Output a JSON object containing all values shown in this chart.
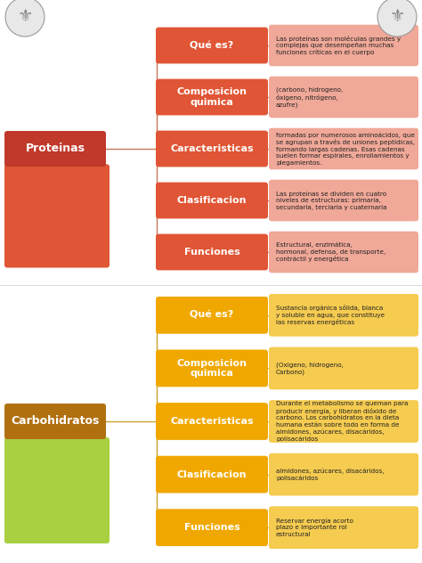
{
  "bg_color": "#ffffff",
  "section1": {
    "title": "Proteinas",
    "title_color": "#c0392b",
    "title_text_color": "#ffffff",
    "branch_color": "#c8785a",
    "box_color": "#e05535",
    "box_text_color": "#ffffff",
    "info_color": "#f0a898",
    "info_text_color": "#222222",
    "categories": [
      "Qué es?",
      "Composicion\nquimica",
      "Caracteristicas",
      "Clasificacion",
      "Funciones"
    ],
    "descriptions": [
      "Las proteínas son moléculas grandes y\ncomplejas que desempeñan muchas\nfunciones críticas en el cuerpo",
      "(carbono, hidrogeno,\nóxigeno, nitrógeno,\nazufre)",
      "formadas por numerosos aminoácidos, que\nse agrupan a través de uniones peptídicas,\nformando largas cadenas. Esas cadenas\nsuelen formar espirales, enrollamientos y\nplegamientos.",
      "Las proteínas se dividen en cuatro\nniveles de estructuras: primaria,\nsecundaria, terciaria y cuaternaria",
      "Estructural, enzimática,\nhormonal, defensa, de transporte,\ncontráctil y energética"
    ],
    "img_color_top": "#e05535",
    "img_color_bot": "#c05030"
  },
  "section2": {
    "title": "Carbohidratos",
    "title_color": "#b07010",
    "title_text_color": "#ffffff",
    "branch_color": "#c8a030",
    "box_color": "#f0a800",
    "box_text_color": "#ffffff",
    "info_color": "#f5cb50",
    "info_text_color": "#222222",
    "categories": [
      "Qué es?",
      "Composicion\nquimica",
      "Caracteristicas",
      "Clasificacion",
      "Funciones"
    ],
    "descriptions": [
      "Sustancia orgánica sólida, blanca\ny soluble en agua, que constituye\nlas reservas energéticas",
      "(Oxigeno, hidrogeno,\nCarbono)",
      "Durante el metabolismo se queman para\nproducir energía, y liberan dióxido de\ncarbono. Los carbohidratos en la dieta\nhumana están sobre todo en forma de\nalmidones, azúcares, disacáridos,\npolisacáridos",
      "almidones, azúcares, disacáridos,\npolisacáridos",
      "Reservar energía acorto\nplazo e importante rol\nestructural"
    ],
    "img_color_top": "#a8d040",
    "img_color_bot": "#e8e030"
  }
}
